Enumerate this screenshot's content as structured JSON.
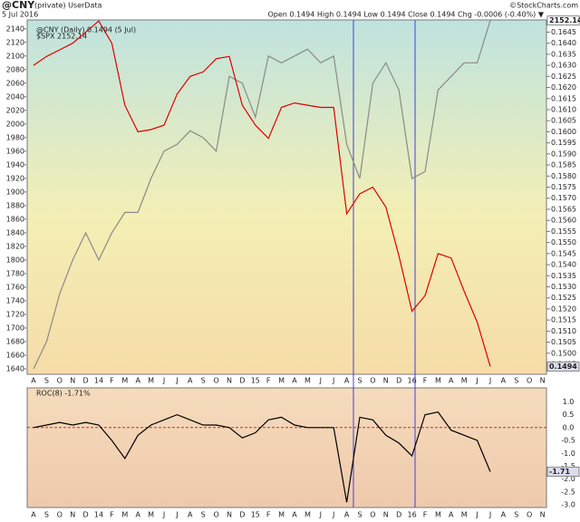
{
  "chart_data": [
    {
      "type": "line",
      "title": "@CNY",
      "subtitle": "(private) UserData",
      "date": "5 Jul 2016",
      "quote": "Open 0.1494  High 0.1494  Low 0.1494  Close 0.1494  Chg -0.0006 (-0.40%) ▼",
      "credit": "©StockCharts.com",
      "categories": [
        "A",
        "S",
        "O",
        "N",
        "D",
        "14",
        "F",
        "M",
        "A",
        "M",
        "J",
        "J",
        "A",
        "S",
        "O",
        "N",
        "D",
        "15",
        "F",
        "M",
        "A",
        "M",
        "J",
        "J",
        "A",
        "S",
        "O",
        "N",
        "D",
        "16",
        "F",
        "M",
        "A",
        "M",
        "J",
        "J",
        "A",
        "S",
        "O",
        "N"
      ],
      "series": [
        {
          "name": "$SPX 2152.14",
          "color": "#8a8a8a",
          "values": [
            1640,
            1680,
            1750,
            1800,
            1840,
            1800,
            1840,
            1870,
            1870,
            1920,
            1960,
            1970,
            1990,
            1980,
            1960,
            2070,
            2060,
            2010,
            2100,
            2090,
            2100,
            2110,
            2090,
            2100,
            1970,
            1920,
            2060,
            2090,
            2050,
            1920,
            1930,
            2050,
            2070,
            2090,
            2090,
            2152.14,
            null,
            null,
            null,
            null
          ]
        },
        {
          "name": "@CNY (Daily) 0.1494 (5 Jul)",
          "color": "#e00000",
          "axis": "y2",
          "values": [
            0.163,
            0.1634,
            0.1637,
            0.164,
            0.1645,
            0.165,
            0.164,
            0.1612,
            0.16,
            0.1601,
            0.1603,
            0.1617,
            0.1625,
            0.1627,
            0.1633,
            0.1634,
            0.1612,
            0.1603,
            0.1597,
            0.1611,
            0.1613,
            0.1612,
            0.1611,
            0.1611,
            0.1563,
            0.1572,
            0.1575,
            0.1566,
            0.1544,
            0.1519,
            0.1526,
            0.1545,
            0.1543,
            0.1528,
            0.1514,
            0.1494,
            null,
            null,
            null,
            null
          ]
        }
      ],
      "ylim": [
        1632,
        2153
      ],
      "yticks": [
        1640,
        1660,
        1680,
        1700,
        1720,
        1740,
        1760,
        1780,
        1800,
        1820,
        1840,
        1860,
        1880,
        1900,
        1920,
        1940,
        1960,
        1980,
        2000,
        2020,
        2040,
        2060,
        2080,
        2100,
        2120,
        2140
      ],
      "y2lim": [
        0.14905,
        0.16505
      ],
      "y2ticks": [
        0.1495,
        {
          "value": 0.15,
          "label": "0.1500"
        },
        0.1505,
        {
          "value": 0.151,
          "label": "0.1510"
        },
        0.1515,
        {
          "value": 0.152,
          "label": "0.1520"
        },
        0.1525,
        {
          "value": 0.153,
          "label": "0.1530"
        },
        0.1535,
        {
          "value": 0.154,
          "label": "0.1540"
        },
        0.1545,
        {
          "value": 0.155,
          "label": "0.1550"
        },
        0.1555,
        {
          "value": 0.156,
          "label": "0.1560"
        },
        0.1565,
        {
          "value": 0.157,
          "label": "0.1570"
        },
        0.1575,
        {
          "value": 0.158,
          "label": "0.1580"
        },
        0.1585,
        {
          "value": 0.159,
          "label": "0.1590"
        },
        0.1595,
        {
          "value": 0.16,
          "label": "0.1600"
        },
        0.1605,
        {
          "value": 0.161,
          "label": "0.1610"
        },
        0.1615,
        {
          "value": 0.162,
          "label": "0.1620"
        },
        0.1625,
        {
          "value": 0.163,
          "label": "0.1630"
        },
        0.1635,
        {
          "value": 0.164,
          "label": "0.1640"
        },
        0.1645,
        {
          "value": 0.165,
          "label": "0.1650"
        }
      ]
    },
    {
      "type": "line",
      "categories": [
        "A",
        "S",
        "O",
        "N",
        "D",
        "14",
        "F",
        "M",
        "A",
        "M",
        "J",
        "J",
        "A",
        "S",
        "O",
        "N",
        "D",
        "15",
        "F",
        "M",
        "A",
        "M",
        "J",
        "J",
        "A",
        "S",
        "O",
        "N",
        "D",
        "16",
        "F",
        "M",
        "A",
        "M",
        "J",
        "J",
        "A",
        "S",
        "O",
        "N"
      ],
      "series": [
        {
          "name": "ROC(8) -1.71%",
          "color": "#000000",
          "values": [
            0,
            0.1,
            0.2,
            0.1,
            0.2,
            0.1,
            -0.5,
            -1.2,
            -0.3,
            0.1,
            0.3,
            0.5,
            0.3,
            0.1,
            0.1,
            0,
            -0.4,
            -0.2,
            0.3,
            0.4,
            0.1,
            0,
            0,
            0,
            -2.9,
            0.4,
            0.3,
            -0.3,
            -0.6,
            -1.1,
            0.5,
            0.6,
            -0.1,
            -0.3,
            -0.5,
            -1.71,
            null,
            null,
            null,
            null
          ]
        }
      ],
      "ylim": [
        -3.1,
        1.54
      ],
      "yticks": [
        {
          "value": 1,
          "label": "1.0"
        },
        0.5,
        {
          "value": 0,
          "label": "0.0"
        },
        -0.5,
        {
          "value": -1,
          "label": "-1.0"
        },
        -1.5,
        {
          "value": -2,
          "label": "-2.0"
        },
        -2.5,
        {
          "value": -3,
          "label": "-3.0"
        }
      ]
    }
  ]
}
